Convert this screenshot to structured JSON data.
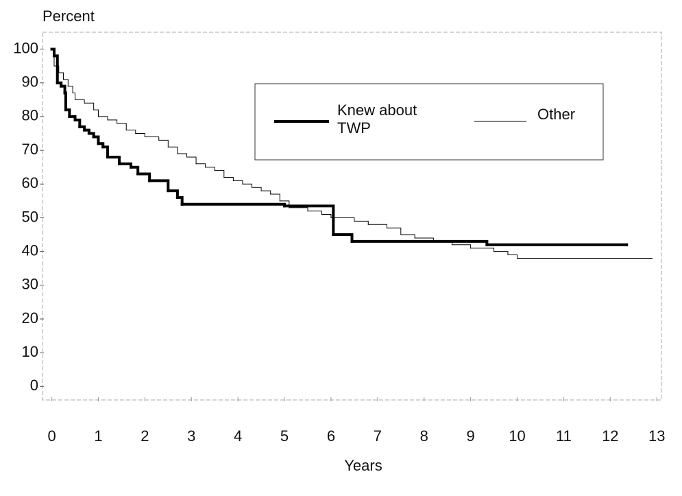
{
  "chart_data": {
    "type": "step",
    "y_label": "Percent",
    "x_label": "Years",
    "xlim": [
      -0.2,
      13.1
    ],
    "ylim": [
      -4,
      105
    ],
    "xticks": [
      0,
      1,
      2,
      3,
      4,
      5,
      6,
      7,
      8,
      9,
      10,
      11,
      12,
      13
    ],
    "yticks": [
      0,
      10,
      20,
      30,
      40,
      50,
      60,
      70,
      80,
      90,
      100
    ],
    "series": [
      {
        "name": "Knew about TWP",
        "color": "#000000",
        "width": 4,
        "x": [
          0,
          0.05,
          0.12,
          0.2,
          0.28,
          0.3,
          0.38,
          0.5,
          0.6,
          0.7,
          0.8,
          0.9,
          1.0,
          1.1,
          1.2,
          1.45,
          1.7,
          1.85,
          2.1,
          2.5,
          2.7,
          2.8,
          5.0,
          6.05,
          6.45,
          9.35,
          12.35
        ],
        "values": [
          100,
          98,
          90,
          89,
          87,
          82,
          80,
          79,
          77,
          76,
          75,
          74,
          72,
          71,
          68,
          66,
          65,
          63,
          61,
          58,
          56,
          54,
          53.5,
          45,
          43,
          42,
          42
        ]
      },
      {
        "name": "Other",
        "color": "#000000",
        "width": 1,
        "x": [
          0,
          0.05,
          0.15,
          0.25,
          0.35,
          0.45,
          0.5,
          0.7,
          0.9,
          1.0,
          1.2,
          1.4,
          1.6,
          1.8,
          2.0,
          2.3,
          2.5,
          2.7,
          2.9,
          3.1,
          3.3,
          3.5,
          3.7,
          3.9,
          4.1,
          4.3,
          4.5,
          4.7,
          4.9,
          5.1,
          5.5,
          5.8,
          6.0,
          6.5,
          6.8,
          7.2,
          7.5,
          7.8,
          8.2,
          8.6,
          9.0,
          9.5,
          9.8,
          10.0,
          12.9
        ],
        "values": [
          100,
          95,
          93,
          91,
          89,
          87,
          85,
          84,
          82,
          80,
          79,
          78,
          76,
          75,
          74,
          73,
          71,
          69,
          68,
          66,
          65,
          64,
          62,
          61,
          60,
          59,
          58,
          57,
          55,
          53,
          52,
          51,
          50,
          49,
          48,
          47,
          45,
          44,
          43,
          42,
          41,
          40,
          39,
          38,
          38
        ]
      }
    ]
  }
}
